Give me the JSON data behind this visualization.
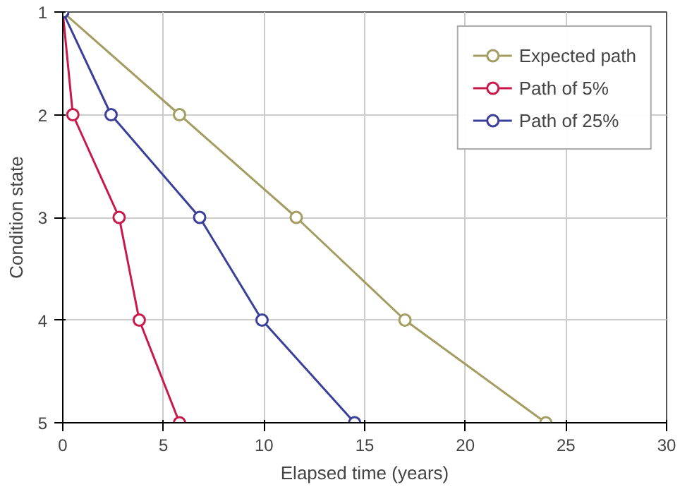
{
  "chart_data": {
    "type": "line",
    "xlabel": "Elapsed time (years)",
    "ylabel": "Condition state",
    "xlim": [
      0,
      30
    ],
    "xticks": [
      0,
      5,
      10,
      15,
      20,
      25,
      30
    ],
    "ylim": [
      5,
      1
    ],
    "yticks": [
      1,
      2,
      3,
      4,
      5
    ],
    "grid": true,
    "legend": "top right",
    "marker": "circle",
    "line_style": "solid",
    "series": [
      {
        "name": "Expected path",
        "color": "#a39d62",
        "x": [
          0,
          5.8,
          11.6,
          17,
          24
        ],
        "values": [
          1,
          2,
          3,
          4,
          5
        ]
      },
      {
        "name": "Path of 5%",
        "color": "#c8194a",
        "x": [
          0,
          0.5,
          2.8,
          3.8,
          5.8
        ],
        "values": [
          1,
          2,
          3,
          4,
          5
        ]
      },
      {
        "name": "Path of 25%",
        "color": "#3a409a",
        "x": [
          0,
          2.4,
          6.8,
          9.9,
          14.5
        ],
        "values": [
          1,
          2,
          3,
          4,
          5
        ]
      }
    ]
  }
}
